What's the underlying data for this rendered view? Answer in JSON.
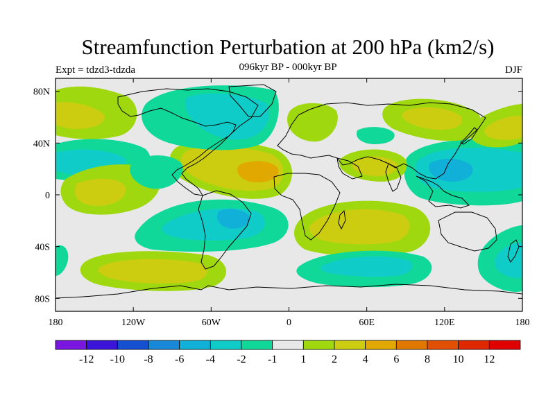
{
  "map": {
    "title": "Streamfunction Perturbation at 200 hPa (km2/s)",
    "subtitle": "096kyr BP - 000kyr BP",
    "left_label": "Expt = tdzd3-tdzda",
    "right_label": "DJF",
    "projection": "cylindrical-equidistant",
    "lon_range": [
      -180,
      180
    ],
    "lat_range": [
      -90,
      90
    ],
    "lon_ticks": [
      {
        "value": -180,
        "label": "180"
      },
      {
        "value": -120,
        "label": "120W"
      },
      {
        "value": -60,
        "label": "60W"
      },
      {
        "value": 0,
        "label": "0"
      },
      {
        "value": 60,
        "label": "60E"
      },
      {
        "value": 120,
        "label": "120E"
      },
      {
        "value": 180,
        "label": "180"
      }
    ],
    "lat_ticks": [
      {
        "value": 80,
        "label": "80N"
      },
      {
        "value": 40,
        "label": "40N"
      },
      {
        "value": 0,
        "label": "0"
      },
      {
        "value": -40,
        "label": "40S"
      },
      {
        "value": -80,
        "label": "80S"
      }
    ],
    "background_color": "#e8e8e8",
    "coastline_color": "#000000"
  },
  "colorbar": {
    "labels": [
      "-12",
      "-10",
      "-8",
      "-6",
      "-4",
      "-2",
      "-1",
      "1",
      "2",
      "4",
      "6",
      "8",
      "10",
      "12"
    ],
    "colors": [
      "#7a16e0",
      "#3a14d8",
      "#1550d0",
      "#1888d8",
      "#10b0d8",
      "#10ccc8",
      "#10d898",
      "#e8e8e8",
      "#a0d810",
      "#cccc10",
      "#e0a800",
      "#e07800",
      "#e05000",
      "#e02800",
      "#e00000"
    ]
  },
  "chart_data": {
    "type": "heatmap",
    "variable": "200 hPa streamfunction perturbation",
    "units": "km2/s",
    "experiment": "tdzd3-tdzda",
    "season": "DJF",
    "levels": [
      -12,
      -10,
      -8,
      -6,
      -4,
      -2,
      -1,
      1,
      2,
      4,
      6,
      8,
      10,
      12
    ],
    "anomaly_centers": [
      {
        "name": "tropical-atlantic-max",
        "lon": -20,
        "lat": 18,
        "value": 5
      },
      {
        "name": "north-america-min",
        "lon": -60,
        "lat": 60,
        "value": -3
      },
      {
        "name": "north-pacific-max",
        "lon": -165,
        "lat": 65,
        "value": 2
      },
      {
        "name": "central-pacific-min",
        "lon": -160,
        "lat": 25,
        "value": -3
      },
      {
        "name": "tropical-pacific-max",
        "lon": -150,
        "lat": 2,
        "value": 3
      },
      {
        "name": "mid-pacific-min",
        "lon": -115,
        "lat": 15,
        "value": -2
      },
      {
        "name": "south-atlantic-min",
        "lon": -45,
        "lat": -20,
        "value": -4
      },
      {
        "name": "south-pacific-max",
        "lon": -100,
        "lat": -60,
        "value": 3
      },
      {
        "name": "indian-ocean-max",
        "lon": 40,
        "lat": -25,
        "value": 3
      },
      {
        "name": "southern-indian-min",
        "lon": 50,
        "lat": -58,
        "value": -4
      },
      {
        "name": "west-pacific-min",
        "lon": 125,
        "lat": 25,
        "value": -3
      },
      {
        "name": "arabia-max",
        "lon": 65,
        "lat": 27,
        "value": 3
      },
      {
        "name": "europe-max",
        "lon": 18,
        "lat": 60,
        "value": 2
      },
      {
        "name": "east-asia-max",
        "lon": 140,
        "lat": 55,
        "value": 2
      },
      {
        "name": "tasman-min",
        "lon": 170,
        "lat": -50,
        "value": -2
      }
    ]
  }
}
